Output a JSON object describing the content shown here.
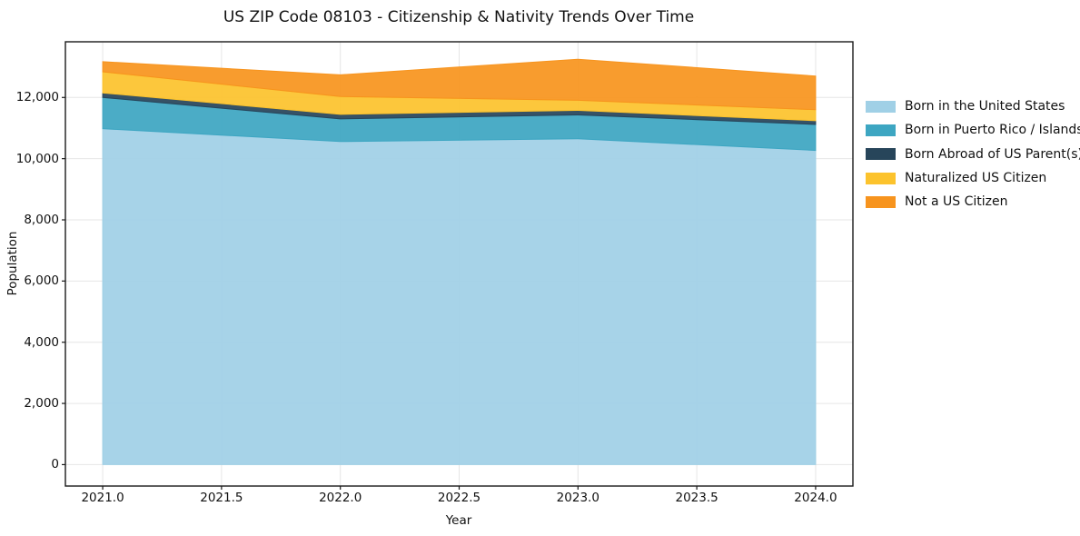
{
  "chart_data": {
    "type": "area",
    "stacked": true,
    "title": "US ZIP Code 08103 - Citizenship & Nativity Trends Over Time",
    "xlabel": "Year",
    "ylabel": "Population",
    "x": [
      2021,
      2022,
      2023,
      2024
    ],
    "series": [
      {
        "name": "Born in the United States",
        "color": "#a0d0e6",
        "values": [
          10980,
          10560,
          10650,
          10270
        ]
      },
      {
        "name": "Born in Puerto Rico / Islands",
        "color": "#3da6c2",
        "values": [
          1020,
          740,
          780,
          850
        ]
      },
      {
        "name": "Born Abroad of US Parent(s)",
        "color": "#27455a",
        "values": [
          150,
          150,
          150,
          120
        ]
      },
      {
        "name": "Naturalized US Citizen",
        "color": "#fcc32d",
        "values": [
          690,
          580,
          330,
          360
        ]
      },
      {
        "name": "Not a US Citizen",
        "color": "#f7941e",
        "values": [
          330,
          710,
          1340,
          1100
        ]
      }
    ],
    "x_ticks": {
      "values": [
        2021.0,
        2021.5,
        2022.0,
        2022.5,
        2023.0,
        2023.5,
        2024.0
      ],
      "labels": [
        "2021.0",
        "2021.5",
        "2022.0",
        "2022.5",
        "2023.0",
        "2023.5",
        "2024.0"
      ]
    },
    "y_ticks": {
      "values": [
        0,
        2000,
        4000,
        6000,
        8000,
        10000,
        12000
      ],
      "labels": [
        "0",
        "2,000",
        "4,000",
        "6,000",
        "8,000",
        "10,000",
        "12,000"
      ]
    },
    "xlim": [
      2020.843,
      2024.157
    ],
    "ylim": [
      -700,
      13820
    ],
    "grid": true,
    "legend_position": "right-outside",
    "colors": {
      "grid": "#e6e6e6",
      "spine": "#1a1a1a",
      "text": "#111111",
      "background": "#ffffff"
    },
    "fill_opacity": 0.93
  }
}
